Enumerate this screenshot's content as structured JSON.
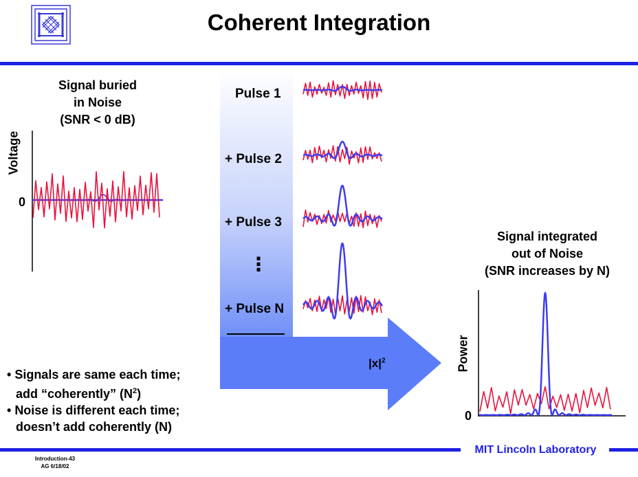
{
  "title": "Coherent Integration",
  "left": {
    "header_lines": [
      "Signal buried",
      "in Noise",
      "(SNR < 0 dB)"
    ],
    "y_label": "Voltage",
    "zero": "0"
  },
  "pulses": [
    "Pulse 1",
    "+ Pulse 2",
    "+ Pulse 3",
    "+ Pulse N"
  ],
  "ellipsis": "⋮",
  "arrow_label": "|x|",
  "arrow_label_sup": "2",
  "right": {
    "header_lines": [
      "Signal integrated",
      "out of Noise",
      "(SNR increases by N)"
    ],
    "y_label": "Power",
    "zero": "0"
  },
  "bullets": [
    {
      "line1": "Signals are same each time;",
      "line2": "add “coherently” (N",
      "sup": "2",
      "tail": ")"
    },
    {
      "line1": "Noise is different each time;",
      "line2": "doesn’t add coherently (N)"
    }
  ],
  "footer": {
    "brand": "MIT Lincoln Laboratory",
    "ref1": "Introduction-43",
    "ref2": "AG 6/18/02"
  },
  "colors": {
    "signal": "#3c3cf0",
    "noise": "#e8123c",
    "rule": "#1f1fe6",
    "arrow": "#5b7dfa"
  }
}
